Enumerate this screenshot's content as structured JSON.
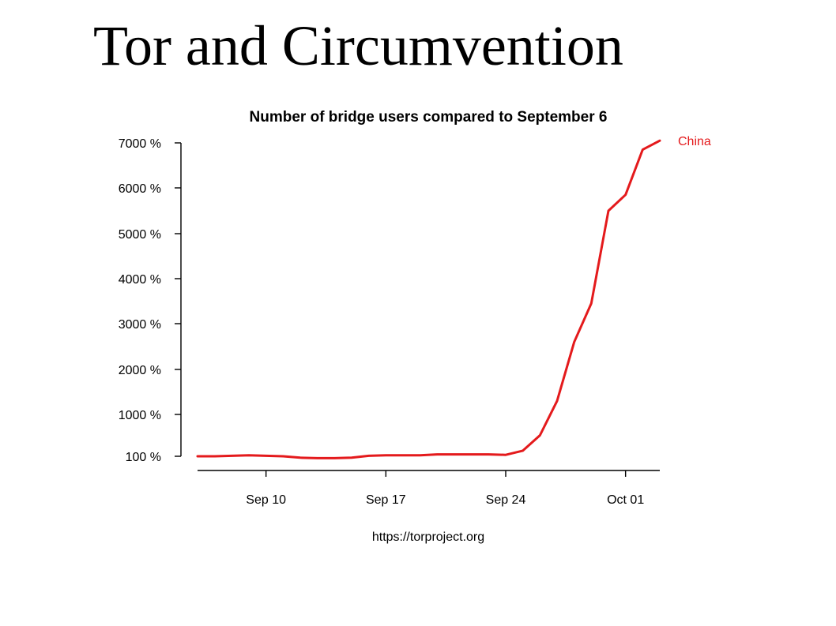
{
  "slide": {
    "title": "Tor and Circumvention"
  },
  "chart_data": {
    "type": "line",
    "title": "Number of bridge users compared to September 6",
    "source": "https://torproject.org",
    "xlabel": "",
    "ylabel": "",
    "x_dates": [
      "Sep 06",
      "Sep 07",
      "Sep 08",
      "Sep 09",
      "Sep 10",
      "Sep 11",
      "Sep 12",
      "Sep 13",
      "Sep 14",
      "Sep 15",
      "Sep 16",
      "Sep 17",
      "Sep 18",
      "Sep 19",
      "Sep 20",
      "Sep 21",
      "Sep 22",
      "Sep 23",
      "Sep 24",
      "Sep 25",
      "Sep 26",
      "Sep 27",
      "Sep 28",
      "Sep 29",
      "Sep 30",
      "Oct 01",
      "Oct 02",
      "Oct 03"
    ],
    "x_tick_labels": [
      "Sep 10",
      "Sep 17",
      "Sep 24",
      "Oct 01"
    ],
    "x_tick_days": [
      4,
      11,
      18,
      25
    ],
    "x_range_days": [
      0,
      28
    ],
    "y_ticks": [
      100,
      1000,
      2000,
      3000,
      4000,
      5000,
      6000,
      7000
    ],
    "y_tick_labels": [
      "100 %",
      "1000 %",
      "2000 %",
      "3000 %",
      "4000 %",
      "5000 %",
      "6000 %",
      "7000 %"
    ],
    "ylim": [
      100,
      7000
    ],
    "grid": false,
    "series": [
      {
        "name": "China",
        "color": "#e41a1c",
        "values": [
          100,
          100,
          110,
          120,
          110,
          100,
          70,
          60,
          60,
          70,
          110,
          120,
          120,
          120,
          140,
          140,
          140,
          140,
          130,
          220,
          550,
          1300,
          2600,
          3450,
          5500,
          5850,
          6850,
          7050
        ]
      }
    ]
  }
}
